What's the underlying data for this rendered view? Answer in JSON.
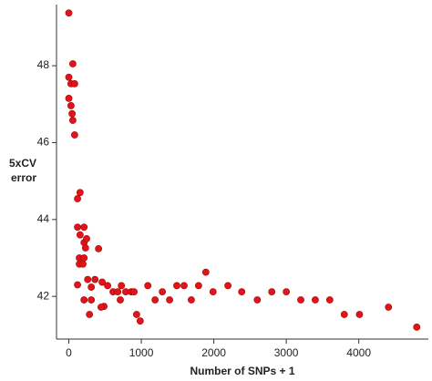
{
  "chart_data": {
    "type": "scatter",
    "xlabel": "Number of SNPs + 1",
    "ylabel_lines": [
      "5xCV",
      "error"
    ],
    "color": "#e0151b",
    "x": [
      0,
      55,
      0,
      30,
      80,
      0,
      30,
      45,
      55,
      80,
      120,
      155,
      120,
      210,
      155,
      210,
      245,
      230,
      410,
      145,
      210,
      145,
      195,
      260,
      360,
      120,
      460,
      310,
      535,
      610,
      675,
      725,
      710,
      785,
      860,
      900,
      210,
      310,
      485,
      445,
      285,
      935,
      985,
      1090,
      1190,
      1290,
      1390,
      1490,
      1590,
      1690,
      1790,
      1890,
      1990,
      2195,
      2385,
      2600,
      2800,
      3000,
      3200,
      3400,
      3600,
      3800,
      4010,
      4410,
      4800
    ],
    "y": [
      49.37,
      48.05,
      47.7,
      47.53,
      47.53,
      47.15,
      46.96,
      46.75,
      46.58,
      46.2,
      44.54,
      44.7,
      43.8,
      43.8,
      43.6,
      43.4,
      43.5,
      43.26,
      43.24,
      43.0,
      43.0,
      42.84,
      42.84,
      42.44,
      42.44,
      42.3,
      42.37,
      42.24,
      42.28,
      42.12,
      42.12,
      42.28,
      41.91,
      42.12,
      42.12,
      42.12,
      41.91,
      41.91,
      41.74,
      41.72,
      41.53,
      41.53,
      41.36,
      42.28,
      41.91,
      42.12,
      41.91,
      42.28,
      42.28,
      41.91,
      42.28,
      42.63,
      42.12,
      42.28,
      42.12,
      41.91,
      42.12,
      42.12,
      41.91,
      41.91,
      41.91,
      41.53,
      41.53,
      41.72,
      41.2
    ],
    "xlim": [
      -170,
      4960
    ],
    "ylim": [
      40.89,
      49.59
    ],
    "xticks": [
      0,
      1000,
      2000,
      3000,
      4000
    ],
    "yticks": [
      42,
      44,
      46,
      48
    ]
  }
}
